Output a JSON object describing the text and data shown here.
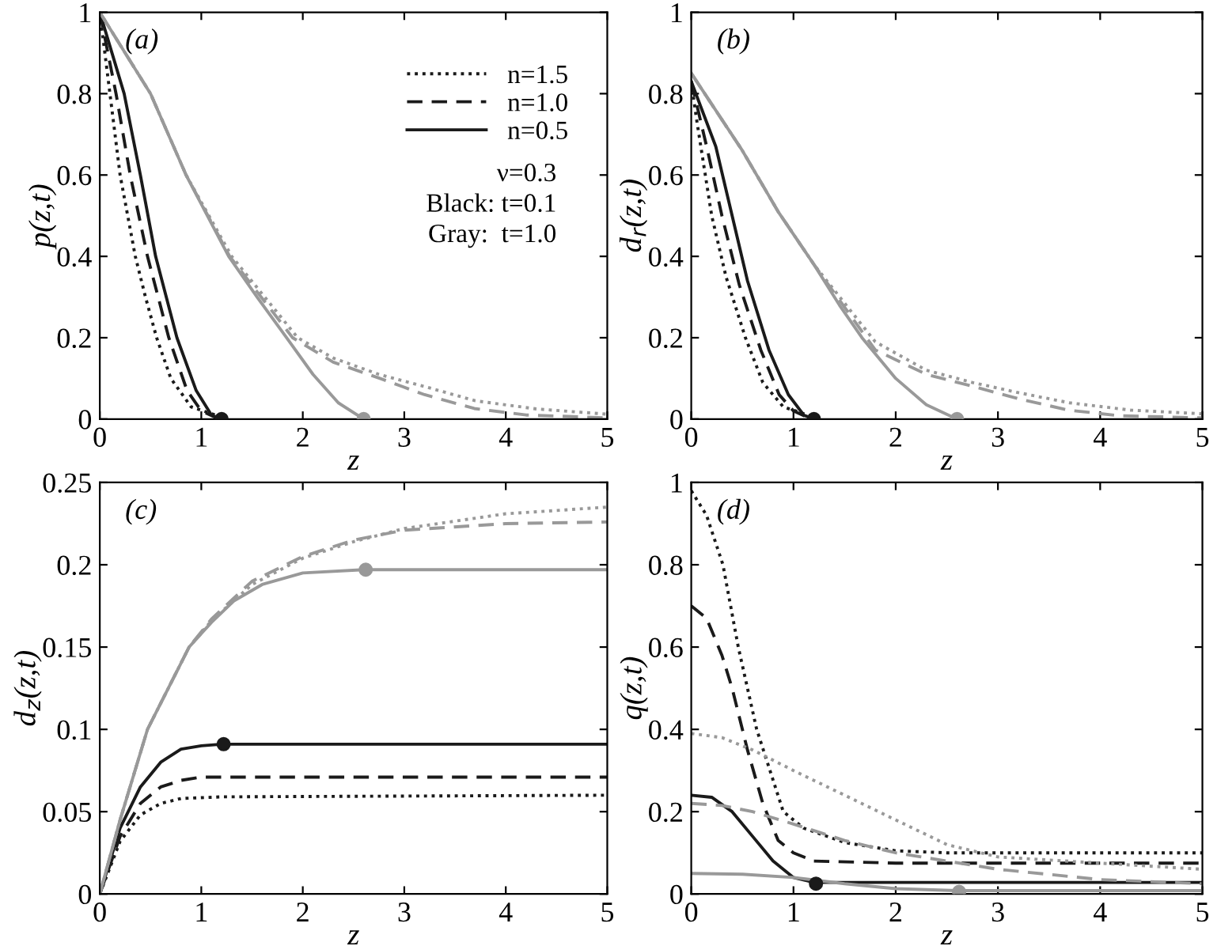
{
  "chart_data": [
    {
      "type": "line",
      "xlabel": "z",
      "ylabel": "p(z,t)",
      "xlim": [
        0,
        5
      ],
      "ylim": [
        0,
        1
      ],
      "xticks": [
        0,
        1,
        2,
        3,
        4,
        5
      ],
      "yticks": [
        0,
        0.2,
        0.4,
        0.6,
        0.8,
        1
      ],
      "legend": "top right",
      "annotations": [
        "(a)",
        "ν=0.3",
        "Black: t=0.1",
        "Gray:  t=1.0"
      ],
      "series": [
        {
          "name": "n=1.5",
          "color": "#1a1a1a",
          "line_style": "dotted",
          "x": [
            0,
            0.05,
            0.1,
            0.2,
            0.35,
            0.45,
            0.56,
            0.7,
            0.9,
            1.2
          ],
          "values": [
            1,
            0.9,
            0.8,
            0.6,
            0.4,
            0.3,
            0.2,
            0.1,
            0.03,
            0.005
          ]
        },
        {
          "name": "n=1.0",
          "color": "#1a1a1a",
          "line_style": "dashed",
          "x": [
            0,
            0.16,
            0.3,
            0.47,
            0.68,
            0.86,
            1.0,
            1.15
          ],
          "values": [
            1,
            0.8,
            0.6,
            0.4,
            0.2,
            0.07,
            0.02,
            0.003
          ]
        },
        {
          "name": "n=0.5",
          "color": "#1a1a1a",
          "line_style": "solid",
          "x": [
            0,
            0.24,
            0.4,
            0.55,
            0.76,
            0.95,
            1.1,
            1.2
          ],
          "values": [
            1,
            0.8,
            0.6,
            0.4,
            0.2,
            0.07,
            0.01,
            0
          ]
        },
        {
          "color": "#999999",
          "line_style": "dotted",
          "x": [
            0,
            0.5,
            0.85,
            1.3,
            1.95,
            2.3,
            2.75,
            3.2,
            3.7,
            4.3,
            5
          ],
          "values": [
            1,
            0.8,
            0.6,
            0.4,
            0.2,
            0.15,
            0.11,
            0.08,
            0.045,
            0.025,
            0.012
          ]
        },
        {
          "color": "#999999",
          "line_style": "dashed",
          "x": [
            0,
            0.5,
            0.85,
            1.28,
            1.9,
            2.3,
            2.76,
            3.2,
            3.69,
            4.2,
            5
          ],
          "values": [
            1,
            0.8,
            0.6,
            0.4,
            0.2,
            0.14,
            0.1,
            0.06,
            0.026,
            0.01,
            0.003
          ]
        },
        {
          "color": "#999999",
          "line_style": "solid",
          "x": [
            0,
            0.5,
            0.85,
            1.27,
            1.55,
            1.84,
            2.1,
            2.35,
            2.6
          ],
          "values": [
            1,
            0.8,
            0.6,
            0.4,
            0.3,
            0.2,
            0.11,
            0.04,
            0
          ]
        },
        {
          "type": "scatter",
          "marker": "circle",
          "color": "#1a1a1a",
          "x": [
            1.2
          ],
          "values": [
            0
          ]
        },
        {
          "type": "scatter",
          "marker": "circle",
          "color": "#999999",
          "x": [
            2.6
          ],
          "values": [
            0
          ]
        }
      ]
    },
    {
      "type": "line",
      "xlabel": "z",
      "ylabel": "d$_{r}$(z,t)",
      "xlim": [
        0,
        5
      ],
      "ylim": [
        0,
        1
      ],
      "xticks": [
        0,
        1,
        2,
        3,
        4,
        5
      ],
      "yticks": [
        0,
        0.2,
        0.4,
        0.6,
        0.8,
        1
      ],
      "annotations": [
        "(b)"
      ],
      "series": [
        {
          "color": "#1a1a1a",
          "line_style": "dotted",
          "x": [
            0,
            0.05,
            0.1,
            0.2,
            0.34,
            0.53,
            0.7,
            0.9,
            1.2
          ],
          "values": [
            0.83,
            0.74,
            0.66,
            0.5,
            0.35,
            0.2,
            0.09,
            0.03,
            0.005
          ]
        },
        {
          "color": "#1a1a1a",
          "line_style": "dashed",
          "x": [
            0,
            0.16,
            0.3,
            0.47,
            0.68,
            0.86,
            1.0,
            1.15
          ],
          "values": [
            0.83,
            0.66,
            0.5,
            0.33,
            0.17,
            0.06,
            0.02,
            0.003
          ]
        },
        {
          "color": "#1a1a1a",
          "line_style": "solid",
          "x": [
            0,
            0.24,
            0.4,
            0.55,
            0.76,
            0.95,
            1.1,
            1.2
          ],
          "values": [
            0.83,
            0.67,
            0.5,
            0.34,
            0.17,
            0.06,
            0.01,
            0
          ]
        },
        {
          "color": "#999999",
          "line_style": "dotted",
          "x": [
            0,
            0.5,
            0.85,
            1.2,
            1.8,
            2.3,
            2.75,
            3.2,
            3.7,
            4.3,
            5
          ],
          "values": [
            0.85,
            0.66,
            0.51,
            0.38,
            0.19,
            0.12,
            0.09,
            0.065,
            0.04,
            0.022,
            0.013
          ]
        },
        {
          "color": "#999999",
          "line_style": "dashed",
          "x": [
            0,
            0.5,
            0.85,
            1.2,
            1.8,
            2.3,
            2.76,
            3.2,
            3.69,
            4.2,
            5
          ],
          "values": [
            0.85,
            0.66,
            0.51,
            0.38,
            0.17,
            0.11,
            0.08,
            0.05,
            0.022,
            0.008,
            0.003
          ]
        },
        {
          "color": "#999999",
          "line_style": "solid",
          "x": [
            0,
            0.5,
            0.85,
            1.2,
            1.45,
            1.67,
            2.0,
            2.3,
            2.6
          ],
          "values": [
            0.85,
            0.66,
            0.51,
            0.38,
            0.28,
            0.2,
            0.1,
            0.035,
            0
          ]
        },
        {
          "type": "scatter",
          "marker": "circle",
          "color": "#1a1a1a",
          "x": [
            1.2
          ],
          "values": [
            0
          ]
        },
        {
          "type": "scatter",
          "marker": "circle",
          "color": "#999999",
          "x": [
            2.6
          ],
          "values": [
            0
          ]
        }
      ]
    },
    {
      "type": "line",
      "xlabel": "z",
      "ylabel": "d$_{z}$(z,t)",
      "xlim": [
        0,
        5
      ],
      "ylim": [
        0,
        0.25
      ],
      "xticks": [
        0,
        1,
        2,
        3,
        4,
        5
      ],
      "yticks": [
        0,
        0.05,
        0.1,
        0.15,
        0.2,
        0.25
      ],
      "annotations": [
        "(c)"
      ],
      "series": [
        {
          "color": "#1a1a1a",
          "line_style": "dotted",
          "x": [
            0,
            0.2,
            0.4,
            0.6,
            0.8,
            1.2,
            5
          ],
          "values": [
            0,
            0.032,
            0.048,
            0.055,
            0.058,
            0.059,
            0.06
          ]
        },
        {
          "color": "#1a1a1a",
          "line_style": "dashed",
          "x": [
            0,
            0.2,
            0.4,
            0.6,
            0.8,
            1.0,
            1.5,
            5
          ],
          "values": [
            0,
            0.035,
            0.055,
            0.065,
            0.069,
            0.071,
            0.071,
            0.071
          ]
        },
        {
          "color": "#1a1a1a",
          "line_style": "solid",
          "x": [
            0,
            0.2,
            0.4,
            0.6,
            0.8,
            1.0,
            1.2,
            5
          ],
          "values": [
            0,
            0.04,
            0.065,
            0.08,
            0.088,
            0.09,
            0.091,
            0.091
          ]
        },
        {
          "color": "#999999",
          "line_style": "dotted",
          "x": [
            0,
            0.2,
            0.47,
            0.88,
            1.1,
            1.5,
            2,
            2.5,
            3,
            4,
            5
          ],
          "values": [
            0,
            0.045,
            0.1,
            0.15,
            0.166,
            0.188,
            0.204,
            0.214,
            0.222,
            0.231,
            0.235
          ]
        },
        {
          "color": "#999999",
          "line_style": "dashed",
          "x": [
            0,
            0.2,
            0.47,
            0.88,
            1.1,
            1.5,
            2,
            2.5,
            3,
            4,
            5
          ],
          "values": [
            0,
            0.045,
            0.1,
            0.15,
            0.167,
            0.19,
            0.205,
            0.215,
            0.221,
            0.225,
            0.226
          ]
        },
        {
          "color": "#999999",
          "line_style": "solid",
          "x": [
            0,
            0.2,
            0.47,
            0.88,
            1.1,
            1.32,
            1.6,
            2.0,
            2.6,
            5
          ],
          "values": [
            0,
            0.045,
            0.1,
            0.15,
            0.165,
            0.178,
            0.188,
            0.195,
            0.197,
            0.197
          ]
        },
        {
          "type": "scatter",
          "marker": "circle",
          "color": "#1a1a1a",
          "x": [
            1.22
          ],
          "values": [
            0.091
          ]
        },
        {
          "type": "scatter",
          "marker": "circle",
          "color": "#999999",
          "x": [
            2.62
          ],
          "values": [
            0.197
          ]
        }
      ]
    },
    {
      "type": "line",
      "xlabel": "z",
      "ylabel": "q(z,t)",
      "xlim": [
        0,
        5
      ],
      "ylim": [
        0,
        1
      ],
      "xticks": [
        0,
        1,
        2,
        3,
        4,
        5
      ],
      "yticks": [
        0,
        0.2,
        0.4,
        0.6,
        0.8,
        1
      ],
      "annotations": [
        "(d)"
      ],
      "series": [
        {
          "color": "#1a1a1a",
          "line_style": "dotted",
          "x": [
            0,
            0.15,
            0.31,
            0.46,
            0.64,
            0.9,
            1.1,
            1.5,
            2,
            2.5,
            5
          ],
          "values": [
            0.98,
            0.92,
            0.8,
            0.6,
            0.4,
            0.2,
            0.16,
            0.125,
            0.105,
            0.1,
            0.1
          ]
        },
        {
          "color": "#1a1a1a",
          "line_style": "dashed",
          "x": [
            0,
            0.15,
            0.3,
            0.4,
            0.55,
            0.7,
            0.85,
            1.0,
            1.2,
            2,
            5
          ],
          "values": [
            0.7,
            0.67,
            0.58,
            0.5,
            0.35,
            0.22,
            0.13,
            0.1,
            0.08,
            0.075,
            0.075
          ]
        },
        {
          "color": "#1a1a1a",
          "line_style": "solid",
          "x": [
            0,
            0.2,
            0.4,
            0.6,
            0.8,
            1.0,
            1.2,
            5
          ],
          "values": [
            0.24,
            0.235,
            0.2,
            0.14,
            0.08,
            0.04,
            0.028,
            0.028
          ]
        },
        {
          "color": "#999999",
          "line_style": "dotted",
          "x": [
            0,
            0.3,
            0.6,
            1,
            1.5,
            2,
            2.5,
            3,
            4,
            5
          ],
          "values": [
            0.39,
            0.38,
            0.35,
            0.3,
            0.24,
            0.18,
            0.12,
            0.09,
            0.075,
            0.06
          ]
        },
        {
          "color": "#999999",
          "line_style": "dashed",
          "x": [
            0,
            0.3,
            0.6,
            1,
            1.5,
            2,
            2.5,
            3,
            4,
            5
          ],
          "values": [
            0.22,
            0.215,
            0.2,
            0.17,
            0.13,
            0.1,
            0.08,
            0.06,
            0.035,
            0.025
          ]
        },
        {
          "color": "#999999",
          "line_style": "solid",
          "x": [
            0,
            0.5,
            1,
            1.5,
            2,
            2.6,
            5
          ],
          "values": [
            0.05,
            0.048,
            0.04,
            0.025,
            0.013,
            0.008,
            0.008
          ]
        },
        {
          "type": "scatter",
          "marker": "circle",
          "color": "#1a1a1a",
          "x": [
            1.22
          ],
          "values": [
            0.025
          ]
        },
        {
          "type": "scatter",
          "marker": "circle",
          "color": "#999999",
          "x": [
            2.62
          ],
          "values": [
            0.005
          ]
        }
      ]
    }
  ]
}
